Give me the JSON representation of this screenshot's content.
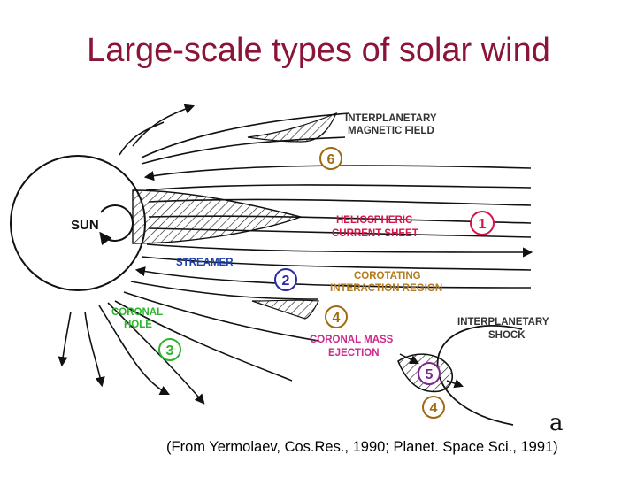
{
  "slide": {
    "title": "Large-scale types of solar wind",
    "caption": "(From Yermolaev, Cos.Res., 1990; Planet. Space Sci., 1991)",
    "corner_mark": "a"
  },
  "diagram": {
    "sun_label": "SUN",
    "labels": {
      "imf_line1": "INTERPLANETARY",
      "imf_line2": "MAGNETIC FIELD",
      "hcs_line1": "HELIOSPHERIC",
      "hcs_line2": "CURRENT SHEET",
      "streamer": "STREAMER",
      "cir_line1": "COROTATING",
      "cir_line2": "INTERACTION REGION",
      "coronal_hole_line1": "CORONAL",
      "coronal_hole_line2": "HOLE",
      "cme_line1": "CORONAL MASS",
      "cme_line2": "EJECTION",
      "shock_line1": "INTERPLANETARY",
      "shock_line2": "SHOCK"
    },
    "markers": {
      "m1": "1",
      "m2": "2",
      "m3": "3",
      "m4a": "4",
      "m4b": "4",
      "m5": "5",
      "m6": "6"
    },
    "colors": {
      "title": "#8a1538",
      "label_dark": "#333333",
      "label_red": "#d4144a",
      "label_blue": "#1a3fa8",
      "label_green": "#2db52d",
      "label_orange": "#b37a1e",
      "label_magenta": "#cc2a8c",
      "marker_red": "#d4144a",
      "marker_blue": "#2a2aa8",
      "marker_green": "#2db52d",
      "marker_brown": "#a06a14",
      "marker_purple": "#7a2a8a"
    }
  }
}
